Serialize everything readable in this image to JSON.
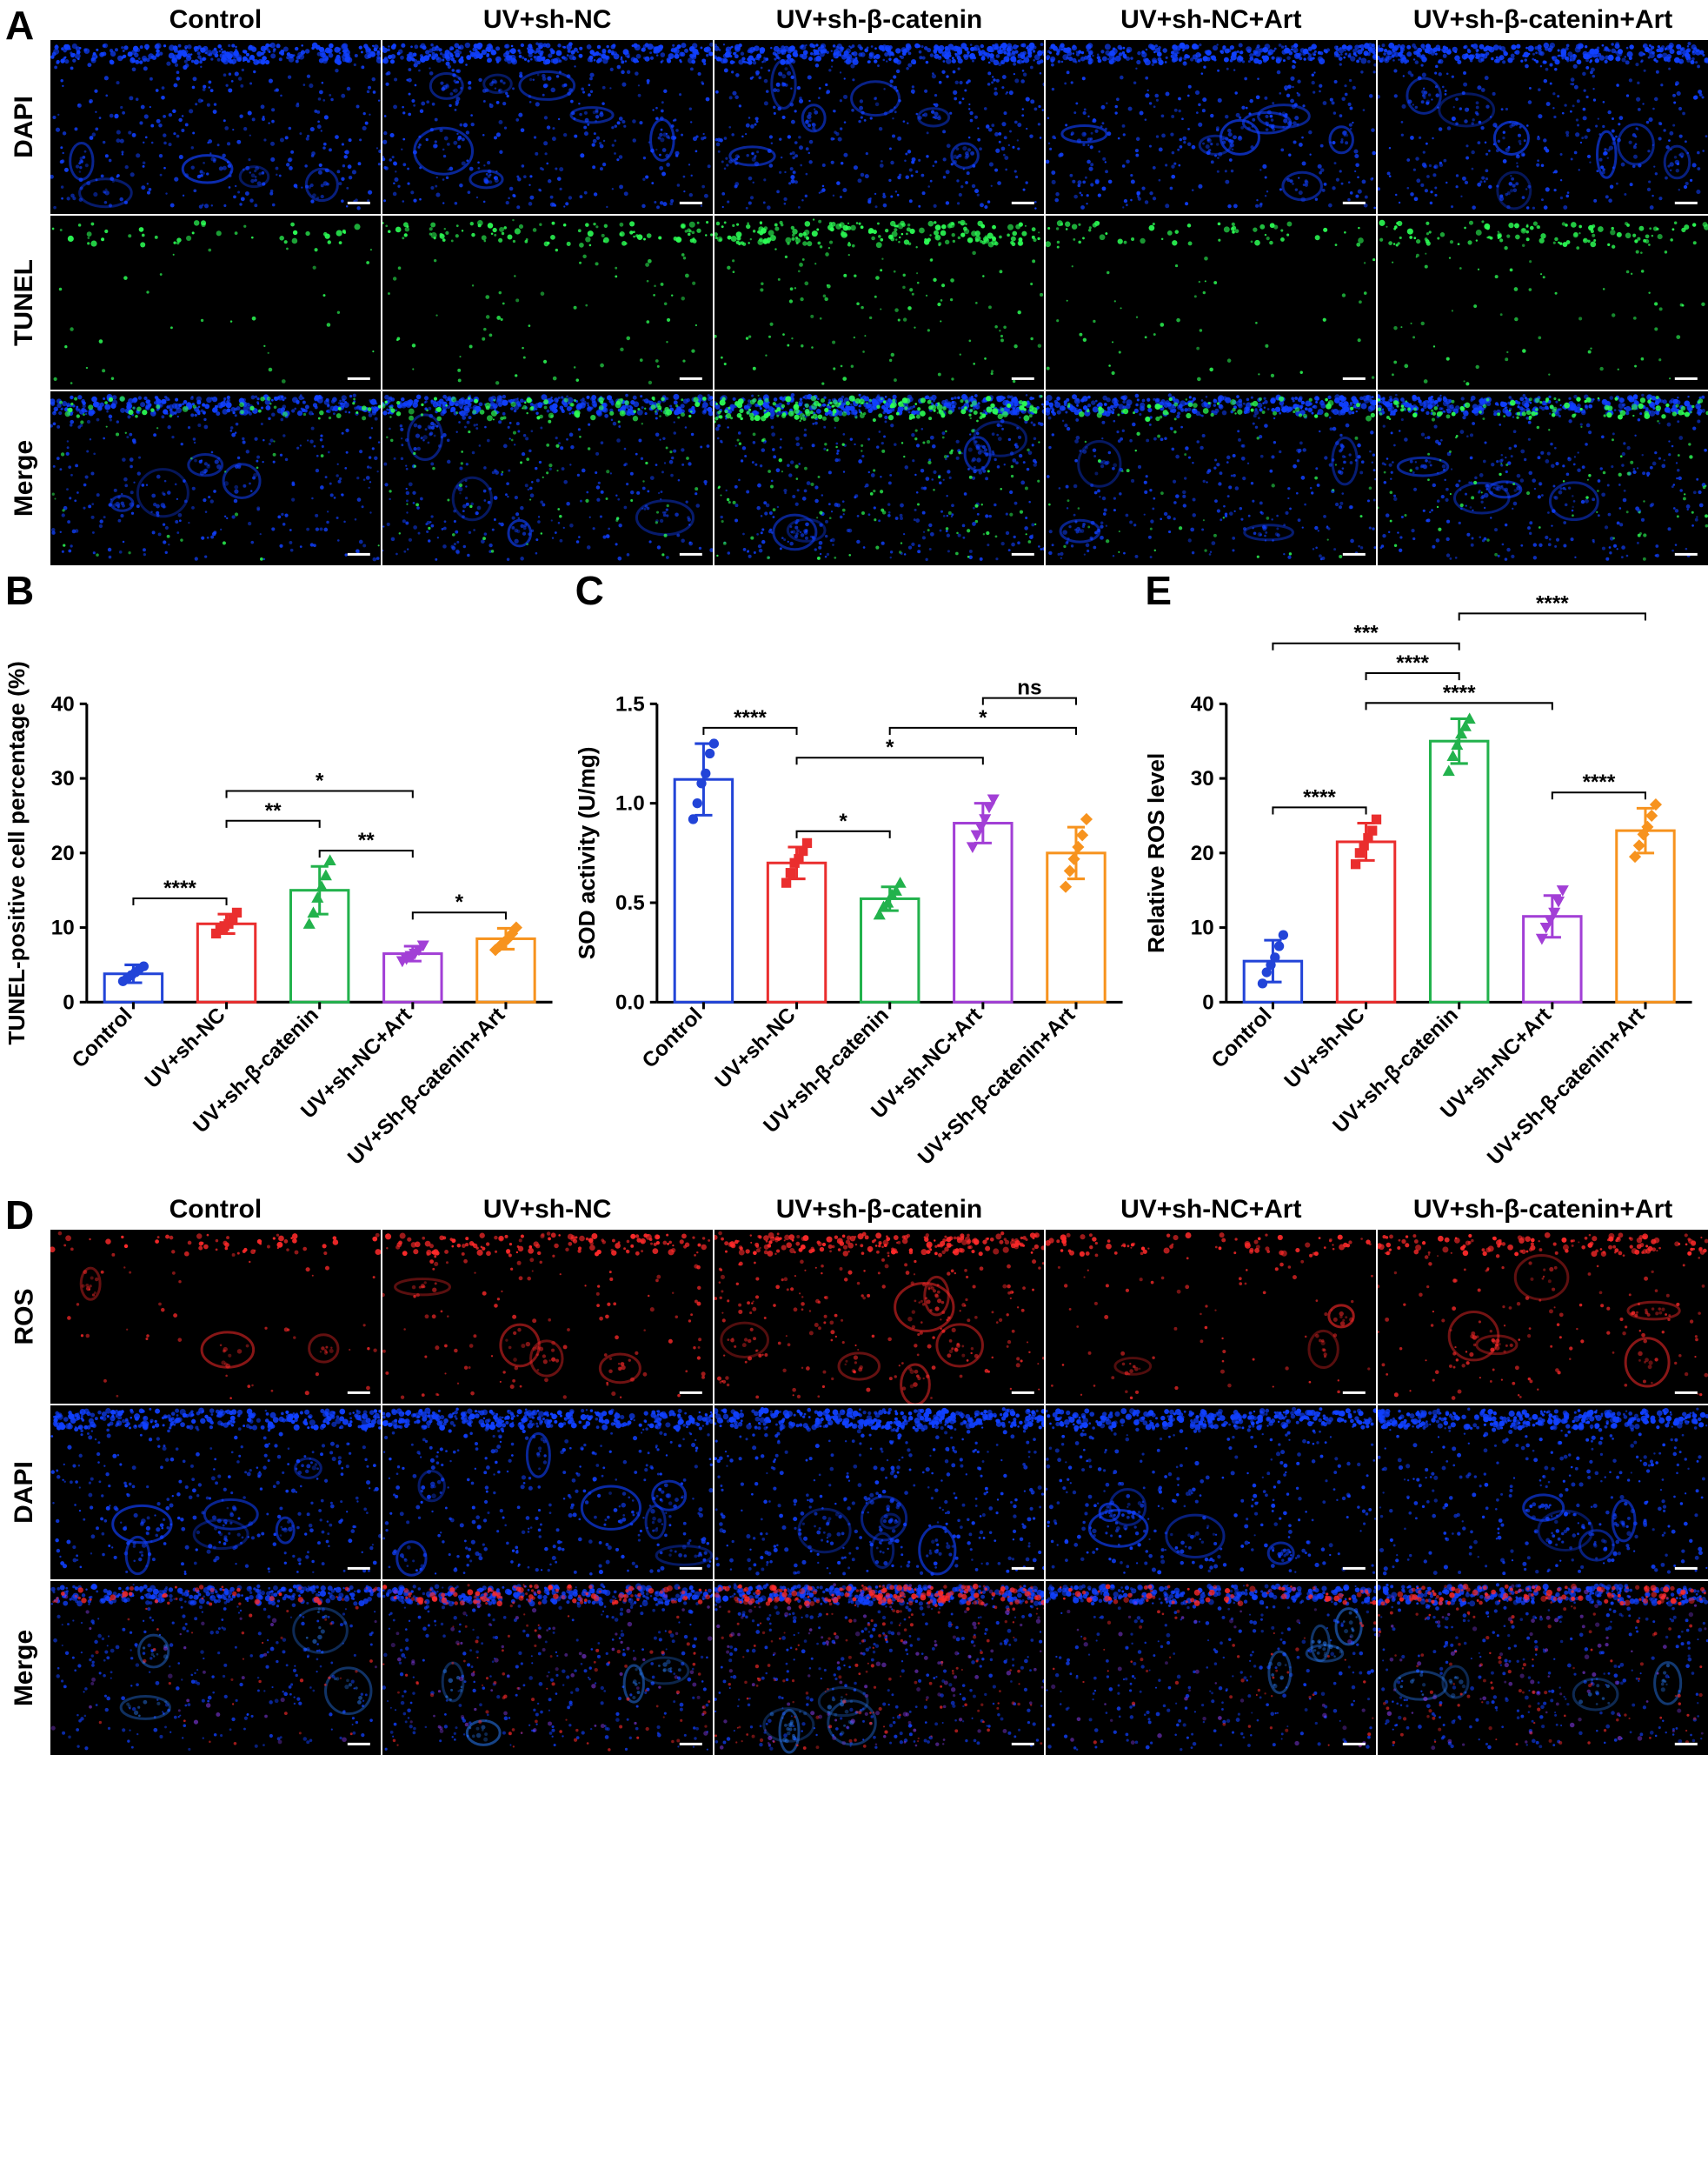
{
  "panel_letters": [
    "A",
    "B",
    "C",
    "D",
    "E"
  ],
  "groups": [
    "Control",
    "UV+sh-NC",
    "UV+sh-β-catenin",
    "UV+sh-NC+Art",
    "UV+sh-β-catenin+Art"
  ],
  "groups_altcase": [
    "Control",
    "UV+sh-NC",
    "UV+sh-β-catenin",
    "UV+sh-NC+Art",
    "UV+Sh-β-catenin+Art"
  ],
  "colors": {
    "blue": "#2244d8",
    "red": "#ea2e2e",
    "green": "#22b24c",
    "purple": "#a23fd6",
    "orange": "#f7931e",
    "black": "#000000",
    "dapi": "#1040ff",
    "tunel_green": "#2cff55",
    "ros_red": "#ff2a2a",
    "merge_purple": "#8a3cf0"
  },
  "panelA": {
    "row_labels": [
      "DAPI",
      "TUNEL",
      "Merge"
    ],
    "row_channel": [
      "dapi",
      "tunel",
      "merge_bt"
    ],
    "intensity_by_group": {
      "dapi": [
        1.0,
        1.05,
        1.2,
        1.0,
        1.05
      ],
      "tunel": [
        0.25,
        0.55,
        1.0,
        0.35,
        0.6
      ]
    }
  },
  "panelD": {
    "row_labels": [
      "ROS",
      "DAPI",
      "Merge"
    ],
    "row_channel": [
      "ros",
      "dapi",
      "merge_rb"
    ],
    "intensity_by_group": {
      "ros": [
        0.25,
        0.6,
        1.0,
        0.35,
        0.65
      ],
      "dapi": [
        1.0,
        1.05,
        1.15,
        1.0,
        1.05
      ]
    }
  },
  "chartB": {
    "ylabel": "TUNEL-positive cell percentage (%)",
    "ylim": [
      0,
      40
    ],
    "ytick_step": 10,
    "means": [
      3.8,
      10.5,
      15.0,
      6.5,
      8.5
    ],
    "errs": [
      1.2,
      1.3,
      3.2,
      1.0,
      1.4
    ],
    "points": [
      [
        2.8,
        3.2,
        3.6,
        4.0,
        4.5,
        4.8
      ],
      [
        9.2,
        9.8,
        10.2,
        10.5,
        11.0,
        12.0
      ],
      [
        10.5,
        12.0,
        14.0,
        15.5,
        17.0,
        19.0
      ],
      [
        5.5,
        5.8,
        6.2,
        6.5,
        7.0,
        7.6
      ],
      [
        7.0,
        7.5,
        8.0,
        8.5,
        9.2,
        10.0
      ]
    ],
    "sig_bars": [
      {
        "i": 0,
        "j": 1,
        "label": "****",
        "level": 0
      },
      {
        "i": 1,
        "j": 2,
        "label": "**",
        "level": 1
      },
      {
        "i": 1,
        "j": 3,
        "label": "*",
        "level": 2
      },
      {
        "i": 2,
        "j": 3,
        "label": "**",
        "level": 0
      },
      {
        "i": 3,
        "j": 4,
        "label": "*",
        "level": 0
      }
    ]
  },
  "chartC": {
    "ylabel": "SOD activity (U/mg)",
    "ylim": [
      0.0,
      1.5
    ],
    "ytick_step": 0.5,
    "means": [
      1.12,
      0.7,
      0.52,
      0.9,
      0.75
    ],
    "errs": [
      0.18,
      0.08,
      0.06,
      0.1,
      0.13
    ],
    "points": [
      [
        0.92,
        1.0,
        1.1,
        1.15,
        1.25,
        1.3
      ],
      [
        0.6,
        0.65,
        0.7,
        0.72,
        0.76,
        0.8
      ],
      [
        0.44,
        0.48,
        0.5,
        0.54,
        0.56,
        0.6
      ],
      [
        0.78,
        0.84,
        0.88,
        0.92,
        0.98,
        1.02
      ],
      [
        0.58,
        0.66,
        0.72,
        0.78,
        0.84,
        0.92
      ]
    ],
    "sig_bars": [
      {
        "i": 0,
        "j": 1,
        "label": "****",
        "level": 0
      },
      {
        "i": 1,
        "j": 2,
        "label": "*",
        "level": 0
      },
      {
        "i": 1,
        "j": 3,
        "label": "*",
        "level": 1
      },
      {
        "i": 2,
        "j": 4,
        "label": "*",
        "level": 2
      },
      {
        "i": 3,
        "j": 4,
        "label": "ns",
        "level": 3
      }
    ]
  },
  "chartE": {
    "ylabel": "Relative ROS level",
    "ylim": [
      0,
      40
    ],
    "ytick_step": 10,
    "means": [
      5.5,
      21.5,
      35.0,
      11.5,
      23.0
    ],
    "errs": [
      2.8,
      2.5,
      3.0,
      2.8,
      3.0
    ],
    "points": [
      [
        2.5,
        4.0,
        5.0,
        6.0,
        7.5,
        9.0
      ],
      [
        18.5,
        20.0,
        21.0,
        22.0,
        23.0,
        24.5
      ],
      [
        31.0,
        33.0,
        34.5,
        36.0,
        37.0,
        38.0
      ],
      [
        8.5,
        10.0,
        11.0,
        12.0,
        13.5,
        15.0
      ],
      [
        19.5,
        21.0,
        22.5,
        23.5,
        25.0,
        26.5
      ]
    ],
    "sig_bars": [
      {
        "i": 0,
        "j": 1,
        "label": "****",
        "level": 0
      },
      {
        "i": 1,
        "j": 2,
        "label": "****",
        "level": 1
      },
      {
        "i": 1,
        "j": 3,
        "label": "****",
        "level": 0
      },
      {
        "i": 2,
        "j": 4,
        "label": "****",
        "level": 3
      },
      {
        "i": 0,
        "j": 2,
        "label": "***",
        "level": 2
      },
      {
        "i": 3,
        "j": 4,
        "label": "****",
        "level": 0
      }
    ]
  },
  "chart_style": {
    "bar_width": 0.62,
    "marker_shapes": [
      "circle",
      "square",
      "triangle",
      "down-triangle",
      "diamond"
    ],
    "marker_size": 7,
    "axis_color": "#000000",
    "tick_len": 8,
    "axis_width": 3,
    "bar_stroke_width": 3,
    "xlabel_rot": -45,
    "xlabel_fontsize": 24,
    "ylabel_fontsize": 26,
    "tick_fontsize": 24,
    "sig_fontsize": 24,
    "sig_line_width": 2,
    "sig_drop": 8,
    "sig_level_gap": 34
  }
}
